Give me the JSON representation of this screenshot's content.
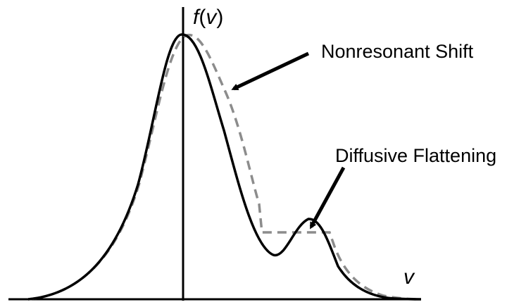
{
  "labels": {
    "y_axis_f": "f",
    "y_axis_open": "(",
    "y_axis_v": "v",
    "y_axis_close": ")",
    "x_axis": "v",
    "annotation_shift": "Nonresonant Shift",
    "annotation_flatten": "Diffusive Flattening"
  },
  "colors": {
    "solid_curve": "#000000",
    "dashed_curve": "#8c8c8c",
    "arrows": "#000000",
    "axes": "#000000"
  }
}
